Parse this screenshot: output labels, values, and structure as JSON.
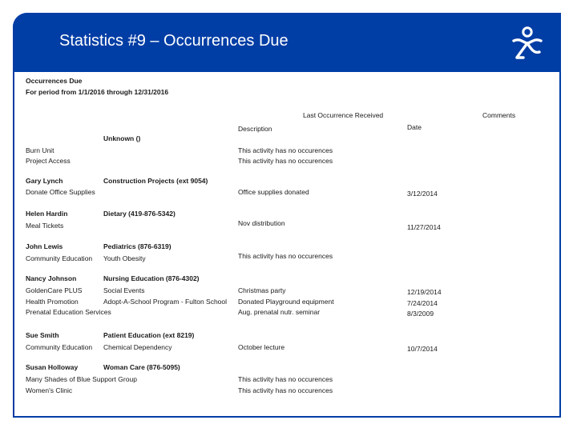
{
  "slide": {
    "title": "Statistics #9 – Occurrences Due",
    "logo_icon": "person-figure-logo",
    "brand_color": "#003da5"
  },
  "report": {
    "title": "Occurrences Due",
    "period": "For period from 1/1/2016 through 12/31/2016",
    "headers": {
      "last_occurrence": "Last Occurrence Received",
      "comments": "Comments",
      "description": "Description",
      "date": "Date"
    },
    "groups": [
      {
        "name": "",
        "department": "Unknown ()",
        "rows": [
          {
            "activity": "Burn Unit",
            "subcategory": "",
            "description": "This activity has no occurences",
            "date": ""
          },
          {
            "activity": "Project Access",
            "subcategory": "",
            "description": "This activity has no occurences",
            "date": ""
          }
        ]
      },
      {
        "name": "Gary Lynch",
        "department": "Construction Projects (ext 9054)",
        "rows": [
          {
            "activity": "Donate Office Supplies",
            "subcategory": "",
            "description": "Office supplies donated",
            "date": "3/12/2014"
          }
        ]
      },
      {
        "name": "Helen Hardin",
        "department": "Dietary (419-876-5342)",
        "rows": [
          {
            "activity": "Meal Tickets",
            "subcategory": "",
            "description": "Nov distribution",
            "date": "11/27/2014"
          }
        ]
      },
      {
        "name": "John Lewis",
        "department": "Pediatrics (876-6319)",
        "rows": [
          {
            "activity": "Community Education",
            "subcategory": "Youth Obesity",
            "description": "This activity has no occurences",
            "date": ""
          }
        ]
      },
      {
        "name": "Nancy Johnson",
        "department": "Nursing Education (876-4302)",
        "rows": [
          {
            "activity": "GoldenCare PLUS",
            "subcategory": "Social Events",
            "description": "Christmas party",
            "date": "12/19/2014"
          },
          {
            "activity": "Health Promotion",
            "subcategory": "Adopt-A-School Program - Fulton School",
            "description": "Donated Playground equipment",
            "date": "7/24/2014"
          },
          {
            "activity": "Prenatal Education Services",
            "subcategory": "",
            "description": "Aug. prenatal nutr. seminar",
            "date": "8/3/2009"
          }
        ]
      },
      {
        "name": "Sue Smith",
        "department": "Patient Education (ext 8219)",
        "rows": [
          {
            "activity": "Community Education",
            "subcategory": "Chemical Dependency",
            "description": "October lecture",
            "date": "10/7/2014"
          }
        ]
      },
      {
        "name": "Susan Holloway",
        "department": "Woman Care (876-5095)",
        "rows": [
          {
            "activity": "Many Shades of Blue Support Group",
            "subcategory": "",
            "description": "This activity has no occurences",
            "date": ""
          },
          {
            "activity": "Women's Clinic",
            "subcategory": "",
            "description": "This activity has no occurences",
            "date": ""
          }
        ]
      }
    ]
  }
}
